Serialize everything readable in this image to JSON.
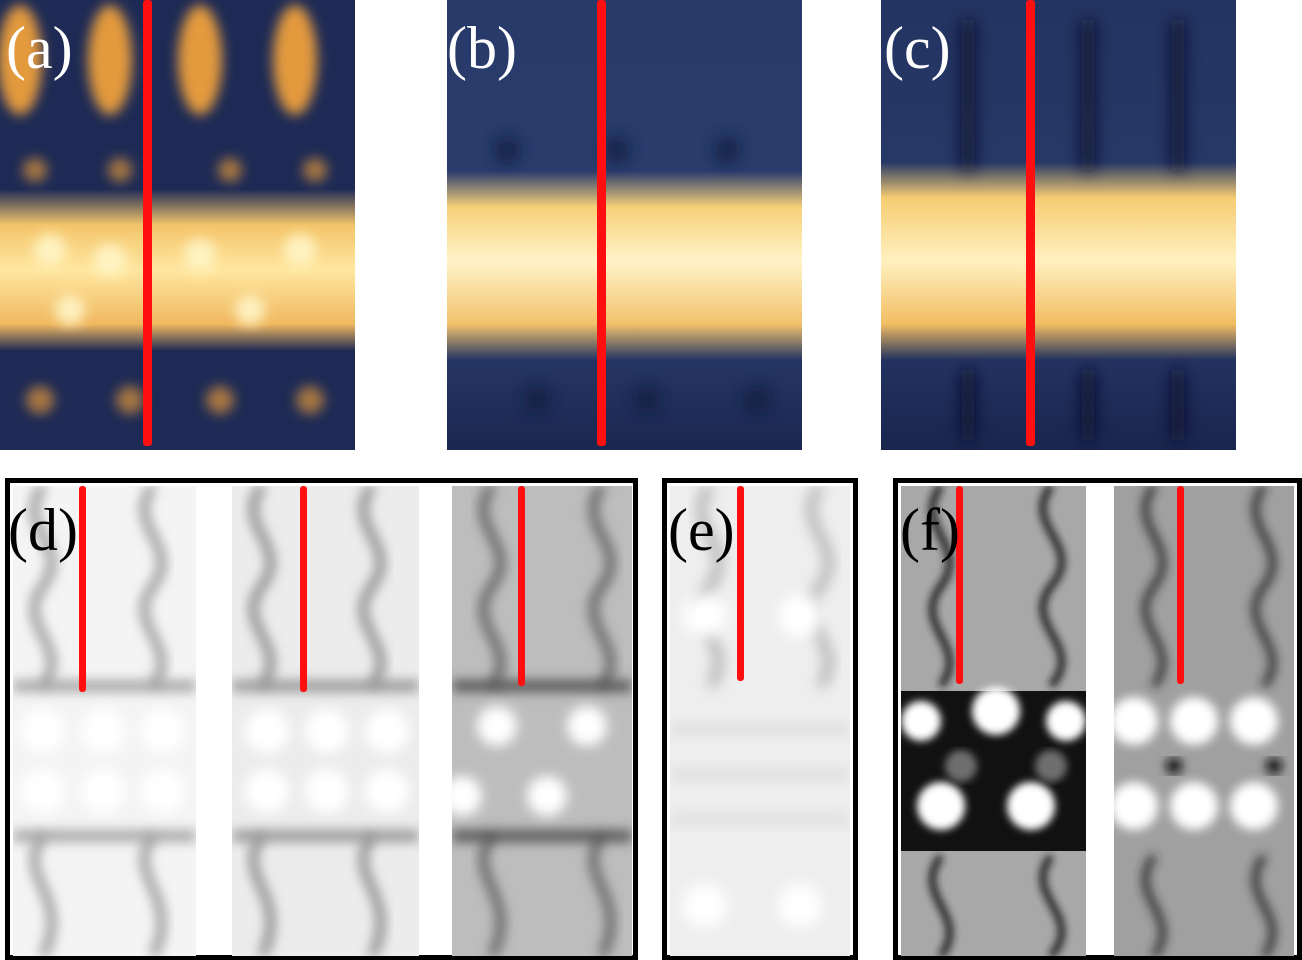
{
  "figure": {
    "panels": [
      {
        "id": "a",
        "label": "(a)"
      },
      {
        "id": "b",
        "label": "(b)"
      },
      {
        "id": "c",
        "label": "(c)"
      },
      {
        "id": "d",
        "label": "(d)"
      },
      {
        "id": "e",
        "label": "(e)"
      },
      {
        "id": "f",
        "label": "(f)"
      }
    ],
    "colors": {
      "marker_line": "#ff0f0f",
      "stm_dark": "#1e2a55",
      "stm_bright": "#fff2b0",
      "stm_mid": "#d89a3a",
      "sim_background": "#f2f2f2",
      "sim_shadow": "#555555",
      "frame": "#000000"
    }
  }
}
